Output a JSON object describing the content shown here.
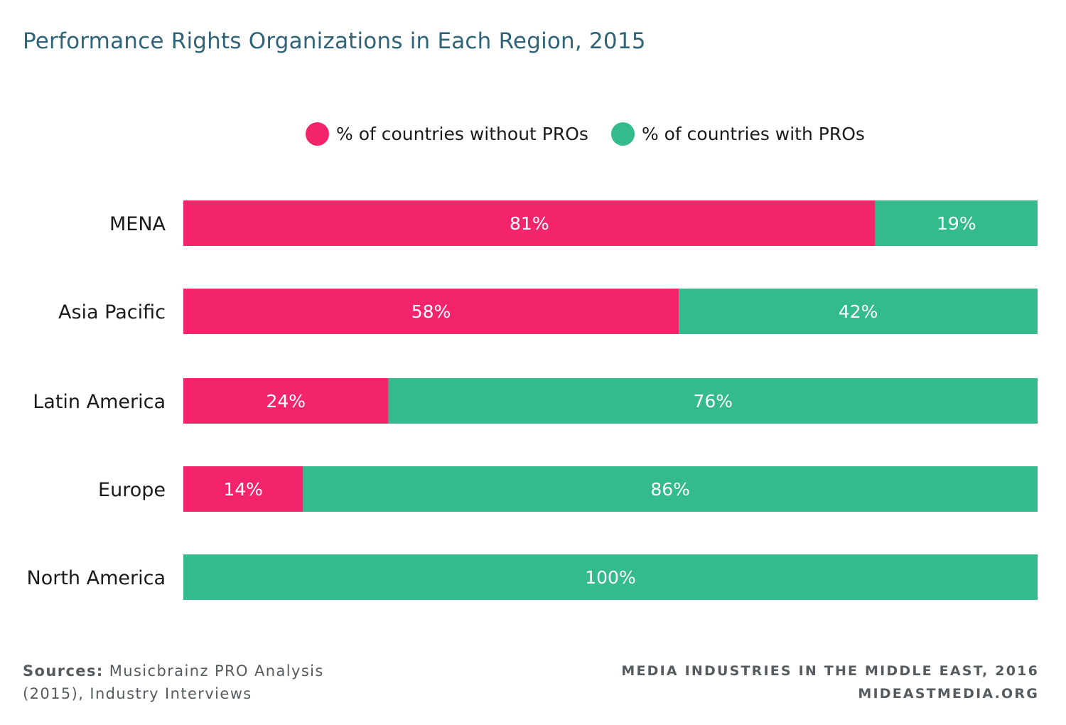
{
  "colors": {
    "without": "#f4246c",
    "with": "#33bb8c"
  },
  "chart_data": {
    "type": "bar",
    "orientation": "horizontal",
    "stacked": true,
    "title": "Performance Rights Organizations in Each Region, 2015",
    "categories": [
      "MENA",
      "Asia Pacific",
      "Latin America",
      "Europe",
      "North America"
    ],
    "series": [
      {
        "name": "% of countries without PROs",
        "values": [
          81,
          58,
          24,
          14,
          0
        ]
      },
      {
        "name": "% of countries with PROs",
        "values": [
          19,
          42,
          76,
          86,
          100
        ]
      }
    ],
    "xlim": [
      0,
      100
    ],
    "legend_position": "top",
    "grid": false
  },
  "footer": {
    "sources_label": "Sources:",
    "sources_text": "Musicbrainz PRO Analysis",
    "sources_text_2": "(2015), Industry Interviews",
    "publication": "MEDIA INDUSTRIES IN THE MIDDLE EAST, 2016",
    "website": "MIDEASTMEDIA.ORG"
  }
}
